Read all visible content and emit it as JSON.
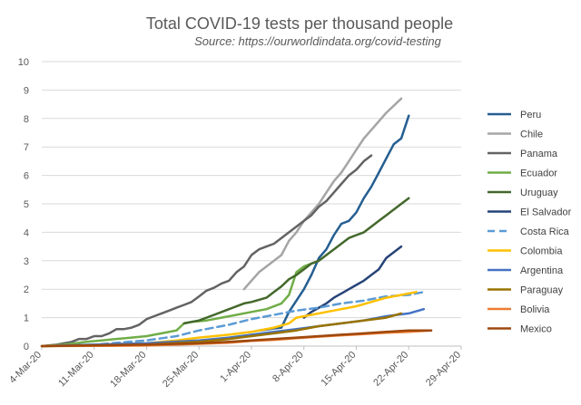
{
  "chart_data": {
    "type": "line",
    "title": "Total COVID-19 tests per thousand people",
    "subtitle": "Source: https://ourworldindata.org/covid-testing",
    "xlabel": "",
    "ylabel": "",
    "ylim": [
      0,
      10
    ],
    "yticks": [
      0,
      1,
      2,
      3,
      4,
      5,
      6,
      7,
      8,
      9,
      10
    ],
    "x_range_day": [
      0,
      56
    ],
    "xticks": [
      {
        "day": 0,
        "label": "4-Mar-20"
      },
      {
        "day": 7,
        "label": "11-Mar-20"
      },
      {
        "day": 14,
        "label": "18-Mar-20"
      },
      {
        "day": 21,
        "label": "25-Mar-20"
      },
      {
        "day": 28,
        "label": "1-Apr-20"
      },
      {
        "day": 35,
        "label": "8-Apr-20"
      },
      {
        "day": 42,
        "label": "15-Apr-20"
      },
      {
        "day": 49,
        "label": "22-Apr-20"
      },
      {
        "day": 56,
        "label": "29-Apr-20"
      }
    ],
    "grid": true,
    "legend_position": "right",
    "series": [
      {
        "name": "Peru",
        "color": "#255E91",
        "dash": false,
        "points": [
          [
            29,
            0.55
          ],
          [
            30,
            0.58
          ],
          [
            31,
            0.62
          ],
          [
            32,
            0.65
          ],
          [
            33,
            1.2
          ],
          [
            34,
            1.6
          ],
          [
            35,
            2.0
          ],
          [
            36,
            2.5
          ],
          [
            37,
            3.1
          ],
          [
            38,
            3.4
          ],
          [
            39,
            3.9
          ],
          [
            40,
            4.3
          ],
          [
            41,
            4.4
          ],
          [
            42,
            4.7
          ],
          [
            43,
            5.2
          ],
          [
            44,
            5.6
          ],
          [
            45,
            6.1
          ],
          [
            46,
            6.6
          ],
          [
            47,
            7.1
          ],
          [
            48,
            7.3
          ],
          [
            49,
            8.1
          ]
        ]
      },
      {
        "name": "Chile",
        "color": "#A5A5A5",
        "dash": false,
        "points": [
          [
            27,
            2.0
          ],
          [
            28,
            2.3
          ],
          [
            29,
            2.6
          ],
          [
            30,
            2.8
          ],
          [
            31,
            3.0
          ],
          [
            32,
            3.2
          ],
          [
            33,
            3.7
          ],
          [
            34,
            4.0
          ],
          [
            35,
            4.4
          ],
          [
            36,
            4.7
          ],
          [
            37,
            5.0
          ],
          [
            38,
            5.4
          ],
          [
            39,
            5.8
          ],
          [
            40,
            6.1
          ],
          [
            41,
            6.5
          ],
          [
            42,
            6.9
          ],
          [
            43,
            7.3
          ],
          [
            44,
            7.6
          ],
          [
            46,
            8.2
          ],
          [
            48,
            8.7
          ]
        ]
      },
      {
        "name": "Panama",
        "color": "#636363",
        "dash": false,
        "points": [
          [
            0,
            0.0
          ],
          [
            2,
            0.05
          ],
          [
            4,
            0.15
          ],
          [
            5,
            0.25
          ],
          [
            6,
            0.25
          ],
          [
            7,
            0.35
          ],
          [
            8,
            0.35
          ],
          [
            9,
            0.45
          ],
          [
            10,
            0.6
          ],
          [
            11,
            0.6
          ],
          [
            12,
            0.65
          ],
          [
            13,
            0.75
          ],
          [
            14,
            0.95
          ],
          [
            15,
            1.05
          ],
          [
            16,
            1.15
          ],
          [
            17,
            1.25
          ],
          [
            18,
            1.35
          ],
          [
            19,
            1.45
          ],
          [
            20,
            1.55
          ],
          [
            21,
            1.75
          ],
          [
            22,
            1.95
          ],
          [
            23,
            2.05
          ],
          [
            24,
            2.2
          ],
          [
            25,
            2.3
          ],
          [
            26,
            2.6
          ],
          [
            27,
            2.8
          ],
          [
            28,
            3.2
          ],
          [
            29,
            3.4
          ],
          [
            30,
            3.5
          ],
          [
            31,
            3.6
          ],
          [
            32,
            3.8
          ],
          [
            33,
            4.0
          ],
          [
            34,
            4.2
          ],
          [
            35,
            4.4
          ],
          [
            36,
            4.6
          ],
          [
            37,
            4.9
          ],
          [
            38,
            5.1
          ],
          [
            39,
            5.4
          ],
          [
            40,
            5.7
          ],
          [
            41,
            6.0
          ],
          [
            42,
            6.2
          ],
          [
            43,
            6.5
          ],
          [
            44,
            6.7
          ]
        ]
      },
      {
        "name": "Ecuador",
        "color": "#70AD47",
        "dash": false,
        "points": [
          [
            0,
            0.0
          ],
          [
            3,
            0.05
          ],
          [
            6,
            0.15
          ],
          [
            8,
            0.2
          ],
          [
            10,
            0.25
          ],
          [
            12,
            0.3
          ],
          [
            14,
            0.35
          ],
          [
            16,
            0.45
          ],
          [
            18,
            0.55
          ],
          [
            19,
            0.8
          ],
          [
            20,
            0.85
          ],
          [
            22,
            0.9
          ],
          [
            24,
            1.0
          ],
          [
            26,
            1.1
          ],
          [
            28,
            1.2
          ],
          [
            30,
            1.3
          ],
          [
            32,
            1.5
          ],
          [
            33,
            1.8
          ],
          [
            34,
            2.6
          ],
          [
            35,
            2.8
          ],
          [
            36,
            2.9
          ]
        ]
      },
      {
        "name": "Uruguay",
        "color": "#43682B",
        "dash": false,
        "points": [
          [
            19,
            0.8
          ],
          [
            21,
            0.9
          ],
          [
            23,
            1.1
          ],
          [
            25,
            1.3
          ],
          [
            27,
            1.5
          ],
          [
            28,
            1.55
          ],
          [
            30,
            1.7
          ],
          [
            31,
            1.9
          ],
          [
            32,
            2.1
          ],
          [
            33,
            2.35
          ],
          [
            34,
            2.5
          ],
          [
            35,
            2.7
          ],
          [
            36,
            2.9
          ],
          [
            37,
            3.0
          ],
          [
            38,
            3.2
          ],
          [
            39,
            3.4
          ],
          [
            40,
            3.6
          ],
          [
            41,
            3.8
          ],
          [
            42,
            3.9
          ],
          [
            43,
            4.0
          ],
          [
            44,
            4.2
          ],
          [
            45,
            4.4
          ],
          [
            46,
            4.6
          ],
          [
            47,
            4.8
          ],
          [
            48,
            5.0
          ],
          [
            49,
            5.2
          ]
        ]
      },
      {
        "name": "El Salvador",
        "color": "#264478",
        "dash": false,
        "points": [
          [
            35,
            1.0
          ],
          [
            36,
            1.2
          ],
          [
            37,
            1.35
          ],
          [
            38,
            1.5
          ],
          [
            39,
            1.7
          ],
          [
            40,
            1.85
          ],
          [
            41,
            2.0
          ],
          [
            42,
            2.15
          ],
          [
            43,
            2.3
          ],
          [
            44,
            2.5
          ],
          [
            45,
            2.7
          ],
          [
            46,
            3.1
          ],
          [
            47,
            3.3
          ],
          [
            48,
            3.5
          ]
        ]
      },
      {
        "name": "Costa Rica",
        "color": "#5B9BD5",
        "dash": true,
        "points": [
          [
            0,
            0.0
          ],
          [
            7,
            0.05
          ],
          [
            14,
            0.2
          ],
          [
            18,
            0.35
          ],
          [
            21,
            0.55
          ],
          [
            25,
            0.75
          ],
          [
            28,
            0.95
          ],
          [
            31,
            1.1
          ],
          [
            34,
            1.25
          ],
          [
            37,
            1.35
          ],
          [
            40,
            1.5
          ],
          [
            43,
            1.6
          ],
          [
            46,
            1.75
          ],
          [
            49,
            1.8
          ],
          [
            51,
            1.9
          ]
        ]
      },
      {
        "name": "Colombia",
        "color": "#FFC000",
        "dash": false,
        "points": [
          [
            0,
            0.0
          ],
          [
            7,
            0.05
          ],
          [
            14,
            0.1
          ],
          [
            18,
            0.2
          ],
          [
            21,
            0.3
          ],
          [
            25,
            0.4
          ],
          [
            28,
            0.5
          ],
          [
            31,
            0.65
          ],
          [
            33,
            0.8
          ],
          [
            34,
            1.0
          ],
          [
            36,
            1.1
          ],
          [
            38,
            1.2
          ],
          [
            40,
            1.3
          ],
          [
            42,
            1.4
          ],
          [
            44,
            1.55
          ],
          [
            46,
            1.7
          ],
          [
            48,
            1.8
          ],
          [
            50,
            1.9
          ]
        ]
      },
      {
        "name": "Argentina",
        "color": "#4472C4",
        "dash": false,
        "points": [
          [
            0,
            0.0
          ],
          [
            7,
            0.05
          ],
          [
            14,
            0.1
          ],
          [
            21,
            0.2
          ],
          [
            25,
            0.3
          ],
          [
            28,
            0.4
          ],
          [
            31,
            0.5
          ],
          [
            34,
            0.6
          ],
          [
            37,
            0.7
          ],
          [
            40,
            0.8
          ],
          [
            43,
            0.9
          ],
          [
            46,
            1.05
          ],
          [
            49,
            1.15
          ],
          [
            51,
            1.3
          ]
        ]
      },
      {
        "name": "Paraguay",
        "color": "#997300",
        "dash": false,
        "points": [
          [
            0,
            0.0
          ],
          [
            14,
            0.05
          ],
          [
            21,
            0.15
          ],
          [
            25,
            0.25
          ],
          [
            28,
            0.35
          ],
          [
            31,
            0.45
          ],
          [
            34,
            0.55
          ],
          [
            37,
            0.7
          ],
          [
            40,
            0.8
          ],
          [
            43,
            0.9
          ],
          [
            46,
            1.0
          ],
          [
            48,
            1.15
          ]
        ]
      },
      {
        "name": "Bolivia",
        "color": "#ED7D31",
        "dash": false,
        "points": [
          [
            0,
            0.0
          ],
          [
            14,
            0.02
          ],
          [
            21,
            0.08
          ],
          [
            25,
            0.12
          ],
          [
            28,
            0.18
          ],
          [
            31,
            0.22
          ],
          [
            34,
            0.28
          ],
          [
            37,
            0.33
          ],
          [
            40,
            0.38
          ],
          [
            43,
            0.42
          ],
          [
            46,
            0.47
          ],
          [
            49,
            0.5
          ],
          [
            52,
            0.55
          ]
        ]
      },
      {
        "name": "Mexico",
        "color": "#9E480E",
        "dash": false,
        "points": [
          [
            0,
            0.0
          ],
          [
            14,
            0.05
          ],
          [
            21,
            0.1
          ],
          [
            25,
            0.15
          ],
          [
            28,
            0.2
          ],
          [
            31,
            0.25
          ],
          [
            34,
            0.3
          ],
          [
            37,
            0.35
          ],
          [
            40,
            0.4
          ],
          [
            43,
            0.45
          ],
          [
            46,
            0.5
          ],
          [
            49,
            0.55
          ],
          [
            52,
            0.55
          ]
        ]
      }
    ]
  }
}
